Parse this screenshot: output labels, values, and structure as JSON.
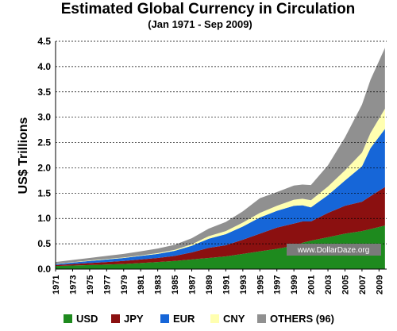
{
  "chart_data": {
    "type": "area",
    "stacked": true,
    "title": "Estimated Global Currency in Circulation",
    "subtitle": "(Jan 1971 - Sep 2009)",
    "ylabel": "US$ Trillions",
    "xlabel": "",
    "ylim": [
      0,
      4.5
    ],
    "yticks": [
      "0.0",
      "0.5",
      "1.0",
      "1.5",
      "2.0",
      "2.5",
      "3.0",
      "3.5",
      "4.0",
      "4.5"
    ],
    "xticks": [
      "1971",
      "1973",
      "1975",
      "1977",
      "1979",
      "1981",
      "1983",
      "1985",
      "1987",
      "1989",
      "1991",
      "1993",
      "1995",
      "1997",
      "1999",
      "2001",
      "2003",
      "2005",
      "2007",
      "2009"
    ],
    "grid": "horizontal dashed",
    "legend_position": "bottom",
    "watermark": "www.DollarDaze.org",
    "x": [
      1971,
      1973,
      1975,
      1977,
      1979,
      1981,
      1983,
      1985,
      1987,
      1989,
      1991,
      1993,
      1995,
      1997,
      1999,
      2000,
      2001,
      2003,
      2005,
      2007,
      2008,
      2009.7
    ],
    "series": [
      {
        "name": "USD",
        "color": "#1e8a1e",
        "values": [
          0.06,
          0.07,
          0.08,
          0.09,
          0.1,
          0.12,
          0.14,
          0.16,
          0.19,
          0.22,
          0.25,
          0.3,
          0.35,
          0.4,
          0.46,
          0.52,
          0.56,
          0.63,
          0.7,
          0.75,
          0.79,
          0.86
        ]
      },
      {
        "name": "JPY",
        "color": "#8b1010",
        "values": [
          0.02,
          0.03,
          0.04,
          0.05,
          0.06,
          0.07,
          0.08,
          0.1,
          0.14,
          0.2,
          0.22,
          0.28,
          0.35,
          0.42,
          0.44,
          0.42,
          0.38,
          0.48,
          0.55,
          0.58,
          0.65,
          0.76
        ]
      },
      {
        "name": "EUR",
        "color": "#1666d8",
        "values": [
          0.02,
          0.03,
          0.04,
          0.05,
          0.06,
          0.07,
          0.08,
          0.1,
          0.13,
          0.18,
          0.22,
          0.26,
          0.32,
          0.33,
          0.35,
          0.32,
          0.28,
          0.35,
          0.5,
          0.7,
          0.95,
          1.15
        ]
      },
      {
        "name": "CNY",
        "color": "#ffffb0",
        "values": [
          0.005,
          0.005,
          0.01,
          0.01,
          0.01,
          0.01,
          0.015,
          0.02,
          0.03,
          0.05,
          0.06,
          0.08,
          0.09,
          0.1,
          0.12,
          0.13,
          0.14,
          0.17,
          0.2,
          0.27,
          0.3,
          0.4
        ]
      },
      {
        "name": "OTHERS (96)",
        "color": "#909090",
        "values": [
          0.035,
          0.045,
          0.05,
          0.06,
          0.07,
          0.08,
          0.09,
          0.1,
          0.12,
          0.15,
          0.18,
          0.22,
          0.29,
          0.27,
          0.28,
          0.28,
          0.3,
          0.42,
          0.65,
          0.95,
          1.05,
          1.2
        ]
      }
    ]
  }
}
